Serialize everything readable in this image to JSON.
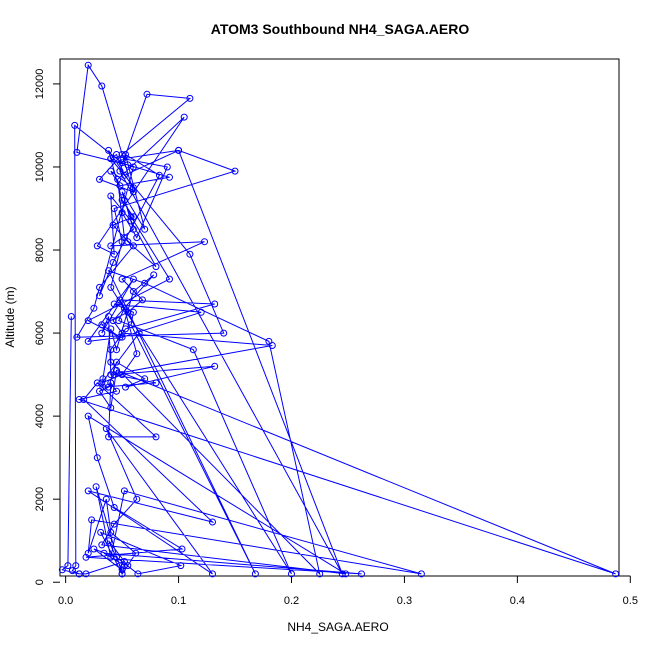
{
  "chart_data": {
    "type": "line",
    "title": "ATOM3 Southbound NH4_SAGA.AERO",
    "xlabel": "NH4_SAGA.AERO",
    "ylabel": "Altitude (m)",
    "xlim": [
      -0.005,
      0.49
    ],
    "ylim": [
      150,
      12600
    ],
    "x_ticks": [
      0.0,
      0.1,
      0.2,
      0.3,
      0.4,
      0.5
    ],
    "x_tick_labels": [
      "0.0",
      "0.1",
      "0.2",
      "0.3",
      "0.4",
      "0.5"
    ],
    "y_ticks": [
      0,
      2000,
      4000,
      6000,
      8000,
      10000,
      12000
    ],
    "y_tick_labels": [
      "0",
      "2000",
      "4000",
      "6000",
      "8000",
      "10000",
      "12000"
    ],
    "grid": false,
    "legend": "none",
    "series_color": "#0000ff",
    "series": [
      {
        "x": [
          0.012,
          0.006,
          0.009,
          0.008,
          0.05,
          0.04,
          0.045,
          0.052,
          0.1,
          0.245,
          0.048,
          0.072,
          0.11,
          0.05,
          0.03,
          0.06,
          0.032,
          0.02,
          0.01,
          0.055,
          0.092,
          0.048,
          0.04,
          0.06,
          0.038,
          0.05,
          0.06,
          0.042,
          0.055,
          0.08,
          0.058,
          0.04,
          0.043,
          0.028,
          0.105,
          0.046,
          0.052,
          0.06,
          0.03,
          0.025,
          0.01,
          0.14,
          0.11,
          0.04,
          0.06,
          0.03,
          0.042,
          0.083,
          0.053,
          0.07,
          0.05,
          0.06,
          0.04,
          0.123,
          0.05,
          0.068,
          0.055,
          0.032,
          0.048,
          0.02,
          0.092,
          0.058,
          0.052,
          0.05,
          0.063,
          0.09,
          0.051,
          0.1,
          0.15,
          0.043,
          0.05,
          0.04,
          0.2,
          0.113,
          0.047,
          0.052,
          0.063,
          0.05,
          0.032,
          0.065,
          0.048,
          0.132,
          0.053,
          0.04,
          0.04,
          0.225,
          0.18,
          0.07,
          0.038,
          0.168,
          0.058,
          0.06,
          0.043,
          0.12,
          0.05,
          0.02,
          0.06,
          0.032,
          0.038,
          0.04,
          0.183,
          0.05,
          0.042,
          0.078,
          0.06,
          0.045,
          0.04,
          0.033,
          0.033,
          0.08,
          0.043,
          0.132,
          0.053,
          0.07,
          0.045,
          0.038,
          0.03,
          0.04,
          0.045,
          0.487,
          0.012,
          0.045,
          0.04,
          0.038,
          0.08,
          0.028,
          0.016,
          0.13,
          0.02,
          0.13,
          0.036,
          0.063,
          0.043,
          0.032,
          0.248,
          0.02,
          0.028,
          0.043,
          0.103,
          0.018,
          0.262,
          0.034,
          0.052,
          0.05,
          0.027,
          0.04,
          0.052,
          0.315,
          0.023,
          0.02,
          0.036,
          0.04,
          0.062,
          0.055,
          0.05,
          0.031,
          0.102,
          0.064,
          0.045,
          0.025,
          0.05,
          0.038,
          0.052,
          0.018,
          0.012,
          -0.003,
          0.002,
          0.005
        ],
        "y": [
          200,
          280,
          400,
          11000,
          10100,
          10200,
          10300,
          9800,
          10400,
          200,
          9900,
          11750,
          11650,
          10300,
          9700,
          9400,
          11950,
          12450,
          10350,
          10050,
          9750,
          9550,
          9900,
          9500,
          10400,
          9200,
          8800,
          8600,
          8200,
          7600,
          8700,
          9300,
          7900,
          8100,
          11200,
          9700,
          8300,
          8100,
          7100,
          6600,
          5900,
          6000,
          7900,
          10200,
          10000,
          6900,
          7700,
          9800,
          10300,
          8500,
          9400,
          8500,
          8100,
          8200,
          7300,
          6800,
          6500,
          6200,
          5900,
          6300,
          7300,
          8800,
          9200,
          8900,
          8300,
          10000,
          10200,
          10400,
          9900,
          9000,
          8200,
          7100,
          200,
          5600,
          6300,
          6600,
          5500,
          5000,
          4800,
          6000,
          6800,
          6700,
          6100,
          5600,
          5300,
          200,
          5800,
          7200,
          7500,
          200,
          6200,
          6500,
          6700,
          6500,
          5900,
          5800,
          7300,
          6000,
          6400,
          5000,
          5700,
          6000,
          6300,
          7400,
          7000,
          5600,
          6100,
          4900,
          4700,
          4800,
          5000,
          5200,
          4700,
          4900,
          5300,
          4700,
          4600,
          4200,
          5100,
          200,
          4400,
          4600,
          4800,
          3500,
          3500,
          4800,
          4400,
          1450,
          2200,
          200,
          3700,
          2000,
          1400,
          900,
          200,
          4000,
          3000,
          1800,
          800,
          600,
          200,
          700,
          400,
          200,
          2300,
          600,
          2200,
          200,
          1500,
          700,
          2000,
          1200,
          700,
          400,
          200,
          1200,
          400,
          200,
          600,
          800,
          300,
          1000,
          500,
          200,
          200,
          300,
          400,
          6400
        ]
      }
    ]
  }
}
